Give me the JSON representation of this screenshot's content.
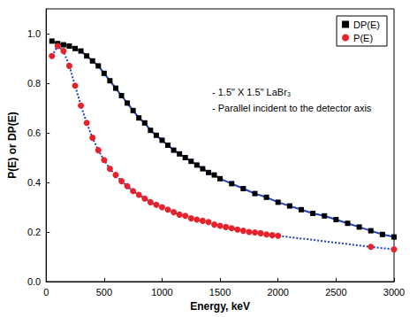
{
  "chart_data": {
    "type": "line",
    "x_label": "Energy, keV",
    "y_label": "P(E) or DP(E)",
    "annotations": [
      "- 1.5\" X 1.5\" LaBr₃",
      "- Parallel incident to the detector axis"
    ],
    "xlim": [
      0,
      3000
    ],
    "xticks": [
      0,
      500,
      1000,
      1500,
      2000,
      2500,
      3000
    ],
    "ylim": [
      0,
      1.1
    ],
    "yticks": [
      {
        "value": 0,
        "label": "0.0"
      },
      0.2,
      0.4,
      0.6,
      0.8,
      {
        "value": 1,
        "label": "1.0"
      }
    ],
    "grid": false,
    "legend": "upper right",
    "series": [
      {
        "name": "DP(E)",
        "color": "#000000",
        "marker": "square",
        "line_style": "solid",
        "x": [
          50,
          100,
          150,
          200,
          250,
          300,
          350,
          400,
          450,
          500,
          550,
          600,
          650,
          700,
          750,
          800,
          850,
          900,
          950,
          1000,
          1050,
          1100,
          1150,
          1200,
          1250,
          1300,
          1350,
          1400,
          1450,
          1500,
          1600,
          1700,
          1800,
          1900,
          2000,
          2100,
          2200,
          2300,
          2400,
          2500,
          2600,
          2700,
          2800,
          2900,
          3000
        ],
        "values": [
          0.97,
          0.96,
          0.955,
          0.95,
          0.94,
          0.93,
          0.91,
          0.89,
          0.87,
          0.84,
          0.81,
          0.78,
          0.75,
          0.72,
          0.69,
          0.66,
          0.64,
          0.61,
          0.59,
          0.57,
          0.55,
          0.53,
          0.515,
          0.5,
          0.485,
          0.47,
          0.455,
          0.44,
          0.43,
          0.415,
          0.395,
          0.375,
          0.355,
          0.34,
          0.32,
          0.305,
          0.29,
          0.275,
          0.265,
          0.25,
          0.235,
          0.22,
          0.205,
          0.19,
          0.18
        ]
      },
      {
        "name": "P(E)",
        "color": "#e8222b",
        "marker": "circle",
        "line_style": "dotted",
        "x": [
          50,
          100,
          150,
          200,
          250,
          300,
          350,
          400,
          450,
          500,
          550,
          600,
          650,
          700,
          750,
          800,
          850,
          900,
          950,
          1000,
          1050,
          1100,
          1150,
          1200,
          1250,
          1300,
          1350,
          1400,
          1450,
          1500,
          1550,
          1600,
          1650,
          1700,
          1750,
          1800,
          1850,
          1900,
          1950,
          2000,
          2800,
          3000
        ],
        "values": [
          0.91,
          0.95,
          0.93,
          0.87,
          0.79,
          0.71,
          0.64,
          0.58,
          0.53,
          0.49,
          0.455,
          0.43,
          0.405,
          0.385,
          0.365,
          0.35,
          0.335,
          0.32,
          0.31,
          0.3,
          0.29,
          0.28,
          0.27,
          0.265,
          0.255,
          0.25,
          0.245,
          0.24,
          0.23,
          0.225,
          0.22,
          0.215,
          0.21,
          0.205,
          0.2,
          0.198,
          0.195,
          0.19,
          0.187,
          0.185,
          0.14,
          0.13
        ]
      }
    ]
  }
}
